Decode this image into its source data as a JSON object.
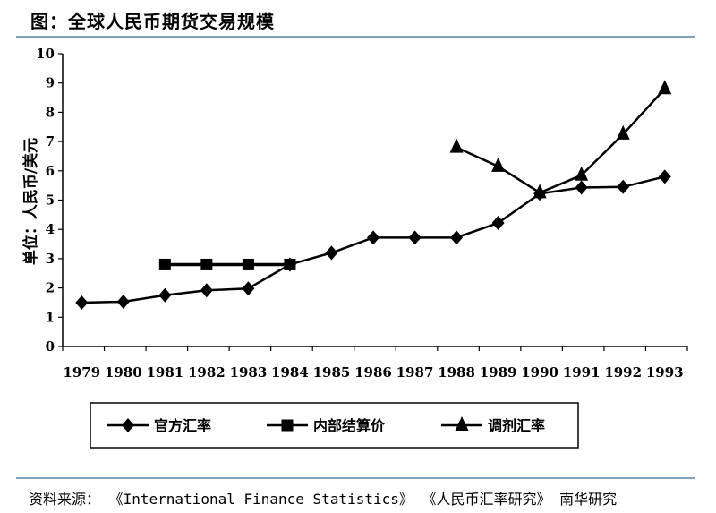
{
  "title": "图：全球人民币期货交易规模",
  "source": "资料来源：  《International Finance Statistics》 《人民币汇率研究》 南华研究",
  "chart_data": {
    "type": "line",
    "ylabel": "单位：人民币/美元",
    "xlabel": "",
    "ylim": [
      0,
      10
    ],
    "yticks": [
      "0",
      "1",
      "2",
      "3",
      "4",
      "5",
      "6",
      "7",
      "8",
      "9",
      "10"
    ],
    "categories": [
      "1979",
      "1980",
      "1981",
      "1982",
      "1983",
      "1984",
      "1985",
      "1986",
      "1987",
      "1988",
      "1989",
      "1990",
      "1991",
      "1992",
      "1993"
    ],
    "grid": false,
    "legend_position": "bottom",
    "series": [
      {
        "name": "官方汇率",
        "marker": "diamond",
        "values": [
          1.5,
          1.53,
          1.75,
          1.92,
          1.98,
          2.8,
          3.2,
          3.72,
          3.72,
          3.72,
          4.22,
          5.22,
          5.43,
          5.45,
          5.8
        ]
      },
      {
        "name": "内部结算价",
        "marker": "square",
        "values": [
          null,
          null,
          2.8,
          2.8,
          2.8,
          2.8,
          null,
          null,
          null,
          null,
          null,
          null,
          null,
          null,
          null
        ]
      },
      {
        "name": "调剂汇率",
        "marker": "triangle",
        "values": [
          null,
          null,
          null,
          null,
          null,
          null,
          null,
          null,
          null,
          6.8,
          6.15,
          5.25,
          5.85,
          7.25,
          8.8
        ]
      }
    ]
  }
}
